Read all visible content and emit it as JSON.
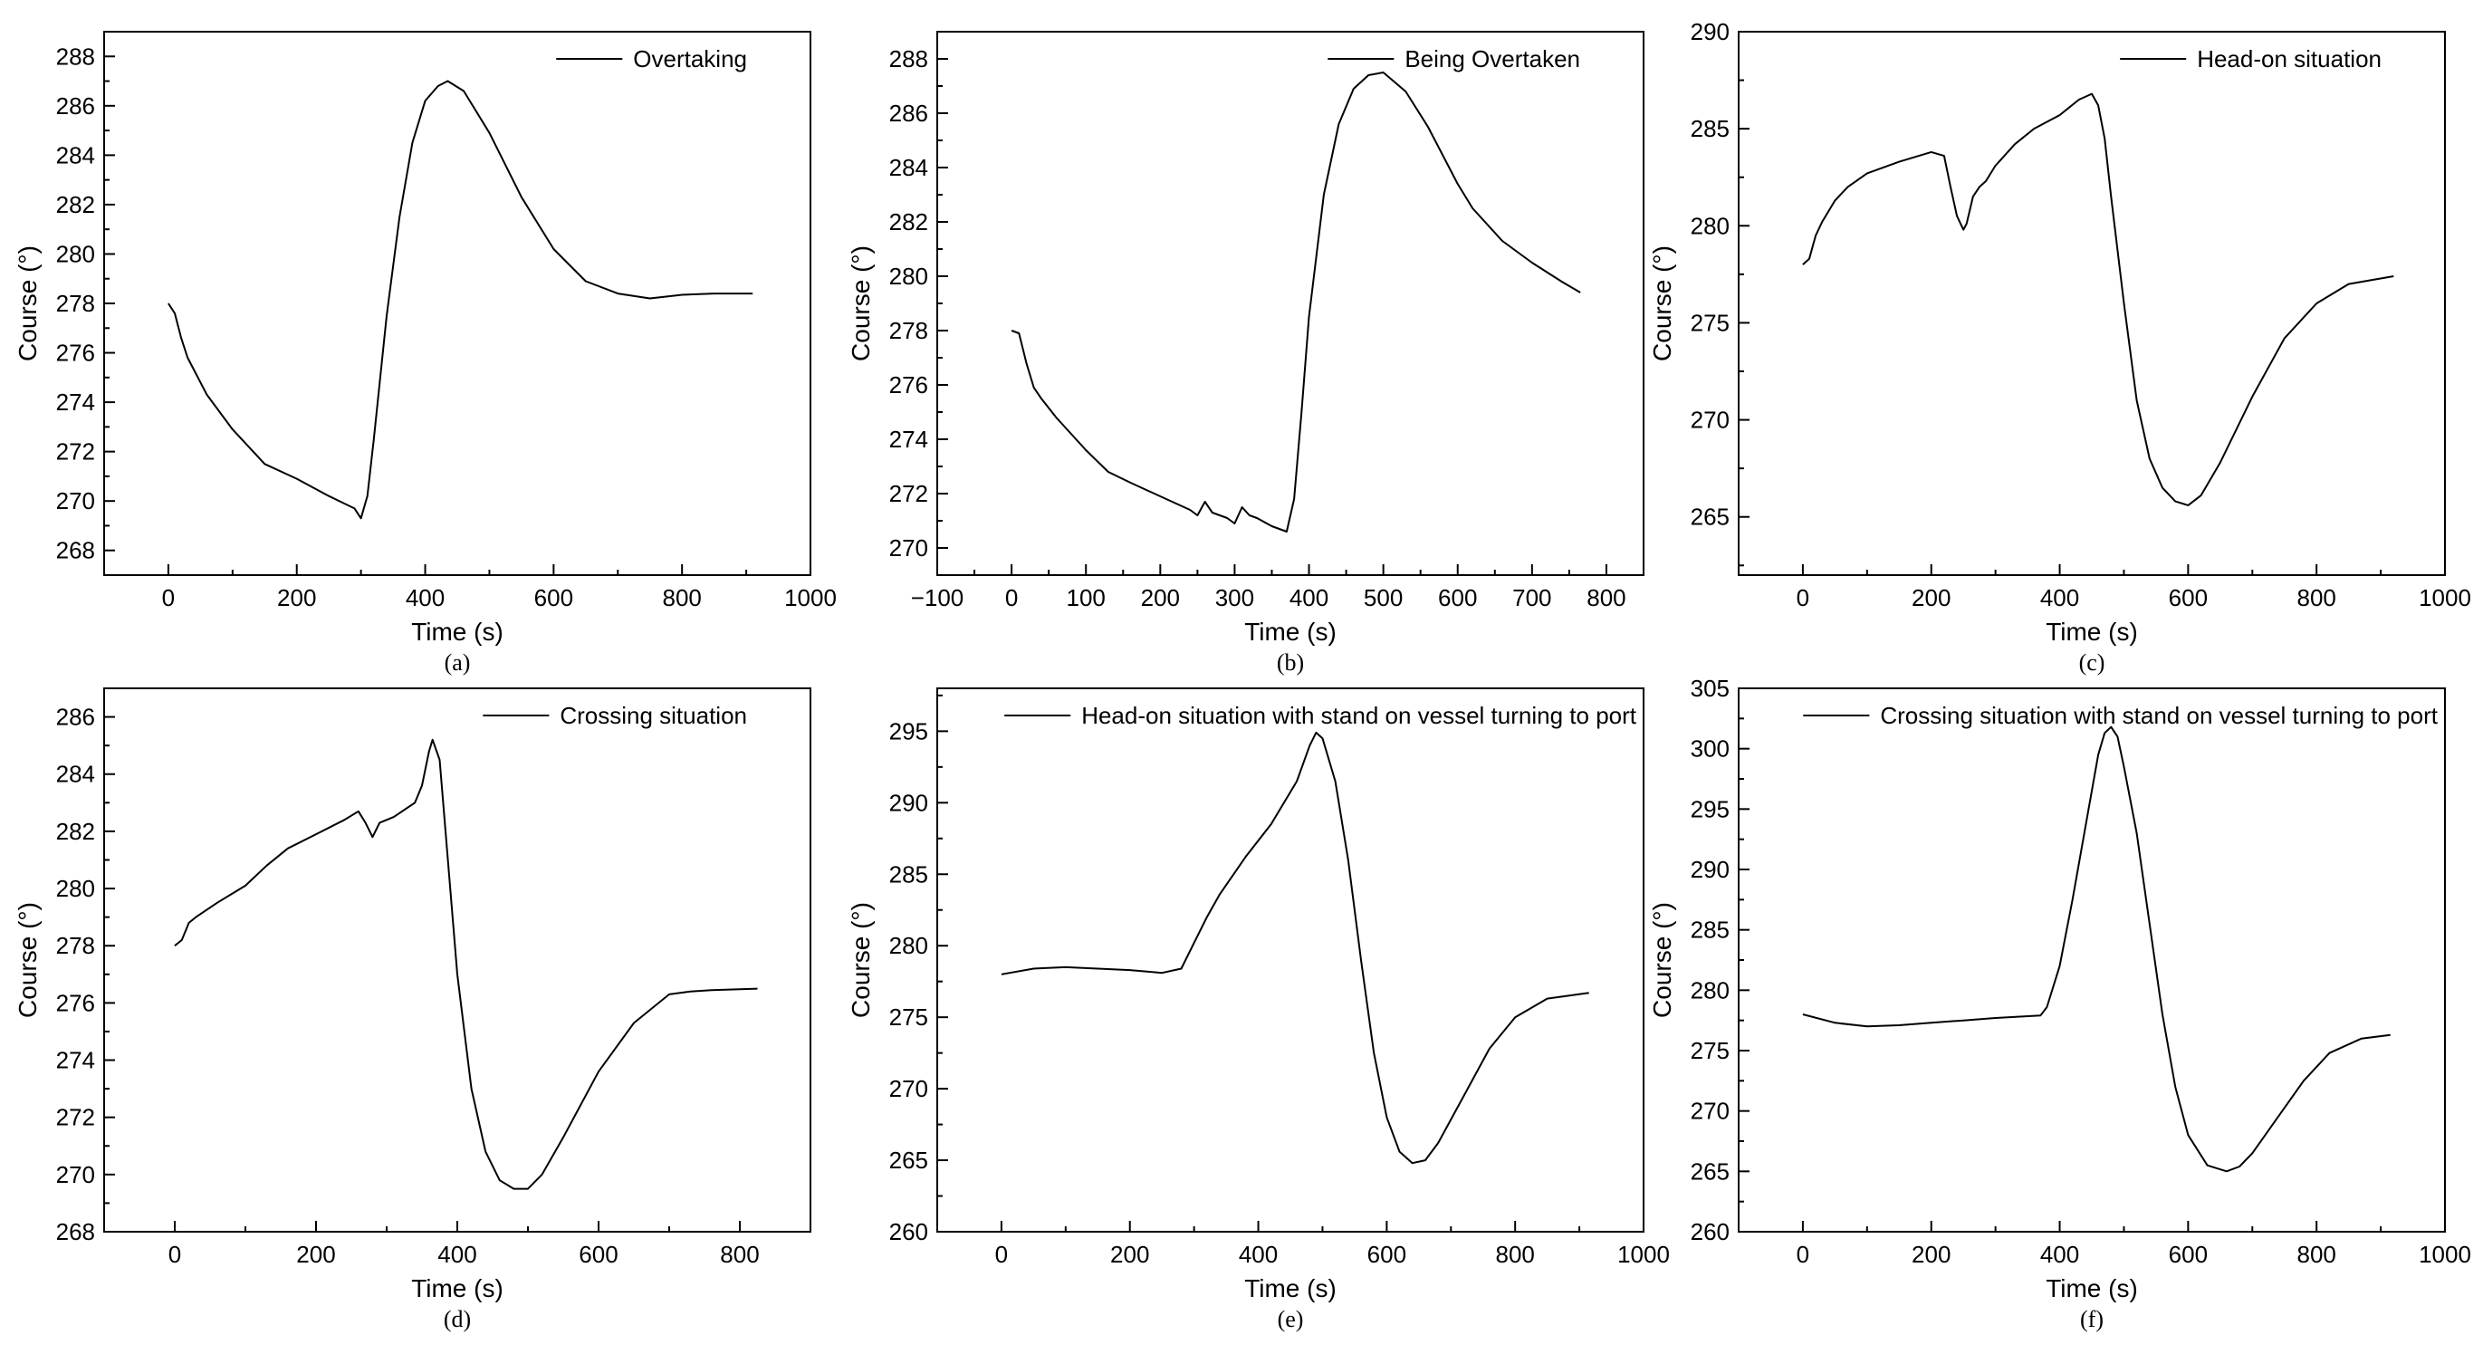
{
  "chart_data": [
    {
      "type": "line",
      "panel": "(a)",
      "title": "",
      "caption": "(a)",
      "xlabel": "Time (s)",
      "ylabel": "Course (°)",
      "xlim": [
        -100,
        1000
      ],
      "ylim": [
        267,
        289
      ],
      "xticks": [
        0,
        200,
        400,
        600,
        800,
        1000
      ],
      "yticks": [
        268,
        270,
        272,
        274,
        276,
        278,
        280,
        282,
        284,
        286,
        288
      ],
      "legend_position": "top-right",
      "series": [
        {
          "name": "Overtaking",
          "x": [
            0,
            10,
            20,
            30,
            40,
            60,
            100,
            150,
            200,
            250,
            290,
            300,
            310,
            320,
            340,
            360,
            380,
            400,
            420,
            435,
            460,
            500,
            550,
            600,
            650,
            700,
            750,
            800,
            850,
            910
          ],
          "y": [
            278.0,
            277.6,
            276.6,
            275.8,
            275.3,
            274.3,
            272.9,
            271.5,
            270.9,
            270.2,
            269.7,
            269.3,
            270.2,
            272.5,
            277.5,
            281.5,
            284.5,
            286.2,
            286.8,
            287.0,
            286.6,
            284.9,
            282.3,
            280.2,
            278.9,
            278.4,
            278.2,
            278.35,
            278.4,
            278.4
          ]
        }
      ]
    },
    {
      "type": "line",
      "panel": "(b)",
      "title": "",
      "caption": "(b)",
      "xlabel": "Time (s)",
      "ylabel": "Course (°)",
      "xlim": [
        -100,
        850
      ],
      "ylim": [
        269,
        289
      ],
      "xticks": [
        -100,
        0,
        100,
        200,
        300,
        400,
        500,
        600,
        700,
        800
      ],
      "xtick_labels": [
        "−100",
        "0",
        "100",
        "200",
        "300",
        "400",
        "500",
        "600",
        "700",
        "800"
      ],
      "yticks": [
        270,
        272,
        274,
        276,
        278,
        280,
        282,
        284,
        286,
        288
      ],
      "legend_position": "top-right",
      "series": [
        {
          "name": "Being Overtaken",
          "x": [
            0,
            10,
            20,
            30,
            40,
            60,
            80,
            100,
            130,
            160,
            200,
            240,
            250,
            260,
            270,
            290,
            300,
            310,
            320,
            330,
            350,
            370,
            380,
            390,
            400,
            420,
            440,
            460,
            480,
            500,
            530,
            560,
            600,
            620,
            660,
            700,
            740,
            765
          ],
          "y": [
            278.0,
            277.9,
            276.8,
            275.9,
            275.5,
            274.8,
            274.2,
            273.6,
            272.8,
            272.4,
            271.9,
            271.4,
            271.2,
            271.7,
            271.3,
            271.1,
            270.9,
            271.5,
            271.2,
            271.1,
            270.8,
            270.6,
            271.8,
            275.0,
            278.5,
            283.0,
            285.6,
            286.9,
            287.4,
            287.5,
            286.8,
            285.5,
            283.4,
            282.5,
            281.3,
            280.5,
            279.8,
            279.4
          ]
        }
      ]
    },
    {
      "type": "line",
      "panel": "(c)",
      "title": "",
      "caption": "(c)",
      "xlabel": "Time (s)",
      "ylabel": "Course (°)",
      "xlim": [
        -100,
        1000
      ],
      "ylim": [
        262,
        290
      ],
      "xticks": [
        0,
        200,
        400,
        600,
        800,
        1000
      ],
      "yticks": [
        265,
        270,
        275,
        280,
        285,
        290
      ],
      "legend_position": "top-right",
      "series": [
        {
          "name": "Head-on situation",
          "x": [
            0,
            10,
            20,
            30,
            50,
            70,
            100,
            150,
            200,
            220,
            230,
            240,
            250,
            255,
            265,
            275,
            285,
            300,
            330,
            360,
            400,
            430,
            450,
            460,
            470,
            480,
            500,
            520,
            540,
            560,
            580,
            600,
            620,
            650,
            700,
            750,
            800,
            850,
            920
          ],
          "y": [
            278.0,
            278.3,
            279.5,
            280.2,
            281.3,
            282.0,
            282.7,
            283.3,
            283.8,
            283.6,
            282.0,
            280.5,
            279.8,
            280.1,
            281.5,
            282.0,
            282.3,
            283.1,
            284.2,
            285.0,
            285.7,
            286.5,
            286.8,
            286.2,
            284.5,
            281.5,
            276.0,
            271.0,
            268.0,
            266.5,
            265.8,
            265.6,
            266.1,
            267.8,
            271.2,
            274.2,
            276.0,
            277.0,
            277.4
          ]
        }
      ]
    },
    {
      "type": "line",
      "panel": "(d)",
      "title": "",
      "caption": "(d)",
      "xlabel": "Time (s)",
      "ylabel": "Course (°)",
      "xlim": [
        -100,
        900
      ],
      "ylim": [
        268,
        287
      ],
      "xticks": [
        0,
        200,
        400,
        600,
        800
      ],
      "yticks": [
        268,
        270,
        272,
        274,
        276,
        278,
        280,
        282,
        284,
        286
      ],
      "legend_position": "top-right",
      "series": [
        {
          "name": "Crossing situation",
          "x": [
            0,
            10,
            20,
            30,
            60,
            100,
            130,
            160,
            200,
            240,
            260,
            270,
            280,
            290,
            310,
            340,
            350,
            360,
            365,
            375,
            385,
            400,
            420,
            440,
            460,
            480,
            500,
            520,
            550,
            600,
            650,
            700,
            730,
            760,
            825
          ],
          "y": [
            278.0,
            278.2,
            278.8,
            279.0,
            279.5,
            280.1,
            280.8,
            281.4,
            281.9,
            282.4,
            282.7,
            282.3,
            281.8,
            282.3,
            282.5,
            283.0,
            283.6,
            284.8,
            285.2,
            284.5,
            281.5,
            277.0,
            273.0,
            270.8,
            269.8,
            269.5,
            269.5,
            270.0,
            271.3,
            273.6,
            275.3,
            276.3,
            276.4,
            276.45,
            276.5
          ]
        }
      ]
    },
    {
      "type": "line",
      "panel": "(e)",
      "title": "",
      "caption": "(e)",
      "xlabel": "Time (s)",
      "ylabel": "Course (°)",
      "xlim": [
        -100,
        1000
      ],
      "ylim": [
        260,
        298
      ],
      "xticks": [
        0,
        200,
        400,
        600,
        800,
        1000
      ],
      "yticks": [
        260,
        265,
        270,
        275,
        280,
        285,
        290,
        295
      ],
      "legend_position": "top",
      "series": [
        {
          "name": "Head-on situation with stand on vessel turning to port",
          "x": [
            0,
            50,
            100,
            150,
            200,
            250,
            280,
            300,
            320,
            340,
            380,
            420,
            460,
            480,
            490,
            500,
            520,
            540,
            560,
            580,
            600,
            620,
            640,
            660,
            680,
            720,
            760,
            800,
            850,
            915
          ],
          "y": [
            278.0,
            278.4,
            278.5,
            278.4,
            278.3,
            278.1,
            278.4,
            280.2,
            282.0,
            283.6,
            286.2,
            288.5,
            291.5,
            294.0,
            294.9,
            294.5,
            291.5,
            286.0,
            279.0,
            272.5,
            268.0,
            265.6,
            264.8,
            265.0,
            266.2,
            269.5,
            272.8,
            275.0,
            276.3,
            276.7
          ]
        }
      ]
    },
    {
      "type": "line",
      "panel": "(f)",
      "title": "",
      "caption": "(f)",
      "xlabel": "Time (s)",
      "ylabel": "Course (°)",
      "xlim": [
        -100,
        1000
      ],
      "ylim": [
        260,
        305
      ],
      "xticks": [
        0,
        200,
        400,
        600,
        800,
        1000
      ],
      "yticks": [
        260,
        265,
        270,
        275,
        280,
        285,
        290,
        295,
        300,
        305
      ],
      "legend_position": "top",
      "series": [
        {
          "name": "Crossing situation with stand on vessel turning to port",
          "x": [
            0,
            50,
            100,
            150,
            200,
            250,
            300,
            370,
            380,
            400,
            420,
            440,
            460,
            470,
            480,
            490,
            500,
            520,
            540,
            560,
            580,
            600,
            630,
            660,
            680,
            700,
            740,
            780,
            820,
            870,
            915
          ],
          "y": [
            278.0,
            277.3,
            277.0,
            277.1,
            277.3,
            277.5,
            277.7,
            277.9,
            278.6,
            282.0,
            287.5,
            293.5,
            299.5,
            301.3,
            301.8,
            301.0,
            298.5,
            293.0,
            285.5,
            278.0,
            272.0,
            268.0,
            265.5,
            265.0,
            265.4,
            266.5,
            269.5,
            272.5,
            274.8,
            276.0,
            276.3
          ]
        }
      ]
    }
  ]
}
